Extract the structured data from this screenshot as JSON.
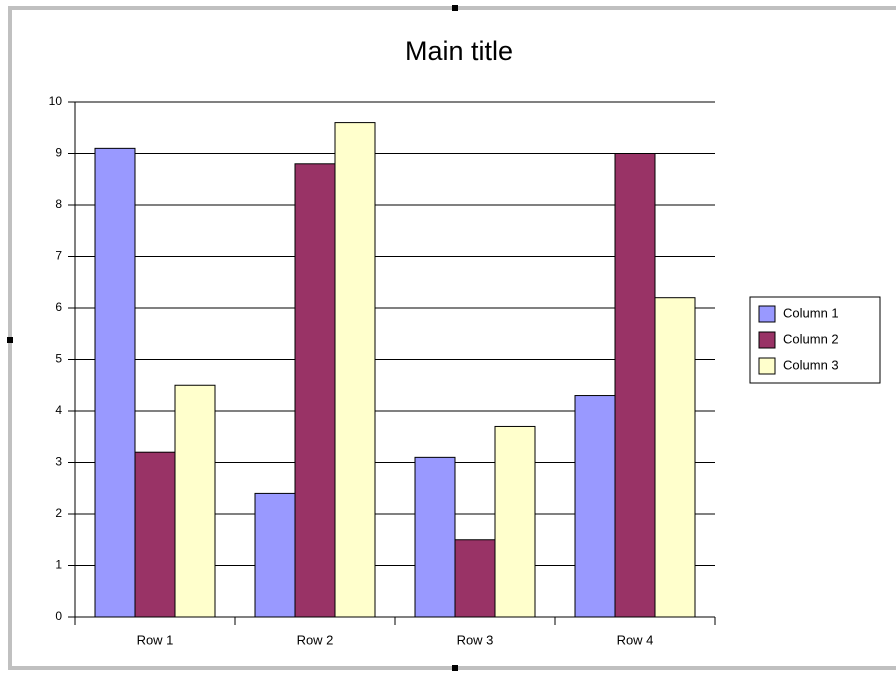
{
  "chart_data": {
    "type": "bar",
    "title": "Main title",
    "categories": [
      "Row 1",
      "Row 2",
      "Row 3",
      "Row 4"
    ],
    "series": [
      {
        "name": "Column 1",
        "color": "#9999ff",
        "values": [
          9.1,
          2.4,
          3.1,
          4.3
        ]
      },
      {
        "name": "Column 2",
        "color": "#993366",
        "values": [
          3.2,
          8.8,
          1.5,
          9.0
        ]
      },
      {
        "name": "Column 3",
        "color": "#ffffcc",
        "values": [
          4.5,
          9.6,
          3.7,
          6.2
        ]
      }
    ],
    "ylim": [
      0,
      10
    ],
    "yticks": [
      0,
      1,
      2,
      3,
      4,
      5,
      6,
      7,
      8,
      9,
      10
    ],
    "grid": true,
    "legend": "right"
  }
}
